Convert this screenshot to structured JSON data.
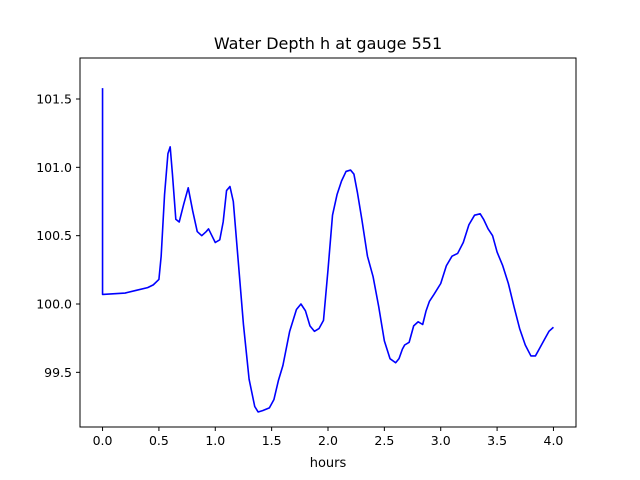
{
  "chart_data": {
    "type": "line",
    "title": "Water Depth h at gauge 551",
    "xlabel": "hours",
    "ylabel": "",
    "xlim": [
      -0.2,
      4.2
    ],
    "ylim": [
      99.1,
      101.8
    ],
    "xticks": [
      0.0,
      0.5,
      1.0,
      1.5,
      2.0,
      2.5,
      3.0,
      3.5,
      4.0
    ],
    "xtick_labels": [
      "0.0",
      "0.5",
      "1.0",
      "1.5",
      "2.0",
      "2.5",
      "3.0",
      "3.5",
      "4.0"
    ],
    "yticks": [
      99.5,
      100.0,
      100.5,
      101.0,
      101.5
    ],
    "ytick_labels": [
      "99.5",
      "100.0",
      "100.5",
      "101.0",
      "101.5"
    ],
    "grid": false,
    "series": [
      {
        "color": "#0000ff",
        "x": [
          0.0,
          0.0,
          0.002,
          0.2,
          0.3,
          0.4,
          0.45,
          0.5,
          0.52,
          0.55,
          0.58,
          0.6,
          0.62,
          0.65,
          0.68,
          0.72,
          0.76,
          0.8,
          0.84,
          0.88,
          0.92,
          0.94,
          0.97,
          1.0,
          1.04,
          1.07,
          1.1,
          1.13,
          1.16,
          1.2,
          1.25,
          1.3,
          1.35,
          1.38,
          1.42,
          1.48,
          1.52,
          1.56,
          1.6,
          1.66,
          1.72,
          1.76,
          1.8,
          1.84,
          1.88,
          1.92,
          1.96,
          2.0,
          2.04,
          2.08,
          2.12,
          2.16,
          2.2,
          2.23,
          2.26,
          2.3,
          2.35,
          2.4,
          2.45,
          2.5,
          2.55,
          2.6,
          2.63,
          2.66,
          2.68,
          2.72,
          2.76,
          2.8,
          2.84,
          2.87,
          2.9,
          2.94,
          3.0,
          3.05,
          3.1,
          3.15,
          3.2,
          3.25,
          3.3,
          3.35,
          3.38,
          3.42,
          3.46,
          3.5,
          3.55,
          3.6,
          3.65,
          3.7,
          3.75,
          3.8,
          3.84,
          3.88,
          3.92,
          3.96,
          4.0
        ],
        "y": [
          101.58,
          100.07,
          100.07,
          100.08,
          100.1,
          100.12,
          100.14,
          100.18,
          100.35,
          100.8,
          101.1,
          101.15,
          100.95,
          100.62,
          100.6,
          100.73,
          100.85,
          100.68,
          100.53,
          100.5,
          100.53,
          100.55,
          100.5,
          100.45,
          100.47,
          100.6,
          100.83,
          100.86,
          100.75,
          100.35,
          99.85,
          99.45,
          99.25,
          99.21,
          99.22,
          99.24,
          99.3,
          99.44,
          99.55,
          99.8,
          99.96,
          100.0,
          99.95,
          99.84,
          99.8,
          99.82,
          99.88,
          100.25,
          100.65,
          100.8,
          100.9,
          100.97,
          100.98,
          100.95,
          100.82,
          100.62,
          100.35,
          100.2,
          99.98,
          99.73,
          99.6,
          99.57,
          99.6,
          99.67,
          99.7,
          99.72,
          99.84,
          99.87,
          99.85,
          99.95,
          100.02,
          100.07,
          100.15,
          100.28,
          100.35,
          100.37,
          100.45,
          100.58,
          100.65,
          100.66,
          100.62,
          100.55,
          100.5,
          100.38,
          100.28,
          100.15,
          99.98,
          99.82,
          99.7,
          99.62,
          99.62,
          99.68,
          99.74,
          99.8,
          99.83
        ]
      }
    ]
  }
}
